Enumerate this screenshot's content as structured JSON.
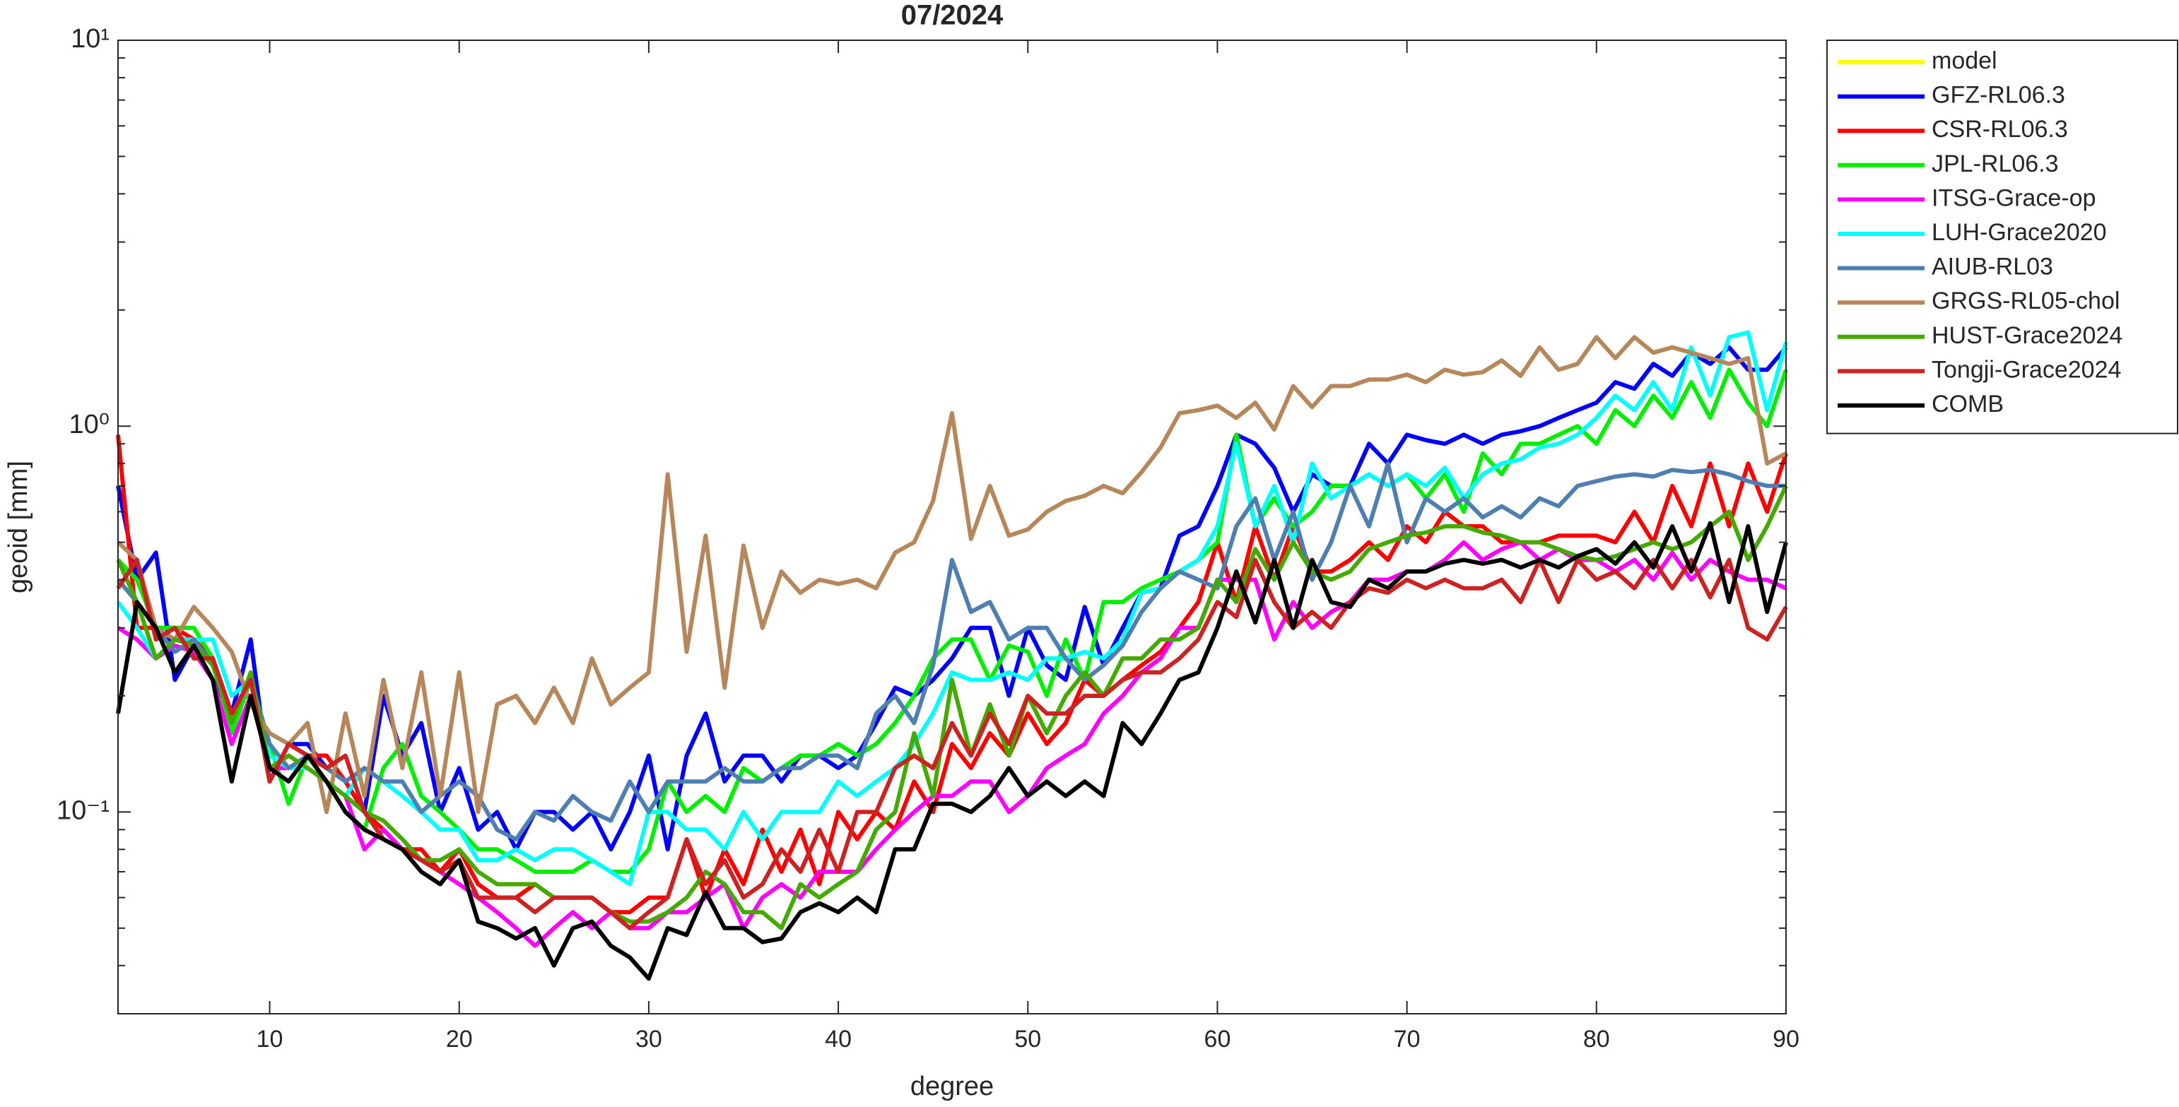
{
  "chart_data": {
    "type": "line",
    "title": "07/2024",
    "xlabel": "degree",
    "ylabel": "geoid [mm]",
    "log_y": true,
    "legend": "outside right top",
    "xlim": [
      2,
      90
    ],
    "ylim": [
      0.03,
      10
    ],
    "xticks": [
      10,
      20,
      30,
      40,
      50,
      60,
      70,
      80,
      90
    ],
    "yticks": [
      {
        "value": 0.1,
        "label": "10⁻¹"
      },
      {
        "value": 1,
        "label": "10⁰"
      },
      {
        "value": 10,
        "label": "10¹"
      }
    ],
    "yticks_minor": [
      0.04,
      0.05,
      0.06,
      0.07,
      0.08,
      0.09,
      0.2,
      0.3,
      0.4,
      0.5,
      0.6,
      0.7,
      0.8,
      0.9,
      2,
      3,
      4,
      5,
      6,
      7,
      8,
      9
    ],
    "x": [
      2,
      3,
      4,
      5,
      6,
      7,
      8,
      9,
      10,
      11,
      12,
      13,
      14,
      15,
      16,
      17,
      18,
      19,
      20,
      21,
      22,
      23,
      24,
      25,
      26,
      27,
      28,
      29,
      30,
      31,
      32,
      33,
      34,
      35,
      36,
      37,
      38,
      39,
      40,
      41,
      42,
      43,
      44,
      45,
      46,
      47,
      48,
      49,
      50,
      51,
      52,
      53,
      54,
      55,
      56,
      57,
      58,
      59,
      60,
      61,
      62,
      63,
      64,
      65,
      66,
      67,
      68,
      69,
      70,
      71,
      72,
      73,
      74,
      75,
      76,
      77,
      78,
      79,
      80,
      81,
      82,
      83,
      84,
      85,
      86,
      87,
      88,
      89,
      90
    ],
    "series": [
      {
        "name": "model",
        "color": "#ffff00",
        "values": [
          null,
          null,
          null,
          null,
          null,
          null,
          null,
          null,
          null,
          null,
          null,
          null,
          null,
          null,
          null,
          null,
          null,
          null,
          null,
          null,
          null,
          null,
          null,
          null,
          null,
          null,
          null,
          null,
          null,
          null,
          null,
          null,
          null,
          null,
          null,
          null,
          null,
          null,
          null,
          null,
          null,
          null,
          null,
          null,
          null,
          null,
          null,
          null,
          null,
          null,
          null,
          null,
          null,
          null,
          null,
          null,
          null,
          null,
          null,
          null,
          null,
          null,
          null,
          null,
          null,
          null,
          null,
          null,
          null,
          null,
          null,
          null,
          null,
          null,
          null,
          null,
          null,
          null,
          null,
          null,
          null,
          null,
          null,
          null,
          null,
          null,
          null,
          null,
          null
        ]
      },
      {
        "name": "GFZ-RL06.3",
        "color": "#0000ff",
        "values": [
          0.7,
          0.4,
          0.47,
          0.22,
          0.27,
          0.22,
          0.18,
          0.28,
          0.12,
          0.15,
          0.15,
          0.13,
          0.12,
          0.1,
          0.2,
          0.14,
          0.17,
          0.1,
          0.13,
          0.09,
          0.1,
          0.08,
          0.1,
          0.1,
          0.09,
          0.1,
          0.08,
          0.1,
          0.14,
          0.08,
          0.14,
          0.18,
          0.12,
          0.14,
          0.14,
          0.12,
          0.14,
          0.14,
          0.13,
          0.14,
          0.17,
          0.21,
          0.2,
          0.22,
          0.25,
          0.3,
          0.3,
          0.2,
          0.3,
          0.24,
          0.22,
          0.34,
          0.24,
          0.3,
          0.37,
          0.38,
          0.52,
          0.55,
          0.7,
          0.95,
          0.9,
          0.78,
          0.6,
          0.75,
          0.7,
          0.7,
          0.9,
          0.8,
          0.95,
          0.92,
          0.9,
          0.95,
          0.9,
          0.95,
          0.97,
          1.0,
          1.05,
          1.1,
          1.15,
          1.3,
          1.25,
          1.45,
          1.35,
          1.55,
          1.45,
          1.6,
          1.4,
          1.4,
          1.6
        ]
      },
      {
        "name": "CSR-RL06.3",
        "color": "#ff0000",
        "values": [
          0.95,
          0.3,
          0.3,
          0.3,
          0.28,
          0.25,
          0.17,
          0.22,
          0.12,
          0.15,
          0.14,
          0.14,
          0.12,
          0.1,
          0.09,
          0.08,
          0.08,
          0.07,
          0.08,
          0.065,
          0.06,
          0.06,
          0.065,
          0.06,
          0.06,
          0.06,
          0.055,
          0.055,
          0.06,
          0.06,
          0.085,
          0.06,
          0.08,
          0.065,
          0.09,
          0.07,
          0.09,
          0.065,
          0.1,
          0.085,
          0.1,
          0.09,
          0.12,
          0.1,
          0.15,
          0.13,
          0.16,
          0.14,
          0.18,
          0.15,
          0.17,
          0.22,
          0.2,
          0.22,
          0.24,
          0.26,
          0.3,
          0.35,
          0.5,
          0.35,
          0.55,
          0.4,
          0.55,
          0.42,
          0.42,
          0.45,
          0.5,
          0.45,
          0.55,
          0.5,
          0.6,
          0.55,
          0.55,
          0.5,
          0.5,
          0.5,
          0.52,
          0.52,
          0.52,
          0.5,
          0.6,
          0.5,
          0.7,
          0.55,
          0.8,
          0.55,
          0.8,
          0.6,
          0.85
        ]
      },
      {
        "name": "JPL-RL06.3",
        "color": "#00ee00",
        "values": [
          0.45,
          0.4,
          0.3,
          0.3,
          0.3,
          0.25,
          0.16,
          0.22,
          0.15,
          0.105,
          0.14,
          0.12,
          0.1,
          0.09,
          0.13,
          0.15,
          0.11,
          0.1,
          0.09,
          0.08,
          0.08,
          0.075,
          0.07,
          0.07,
          0.07,
          0.075,
          0.07,
          0.07,
          0.08,
          0.12,
          0.1,
          0.11,
          0.1,
          0.13,
          0.12,
          0.13,
          0.14,
          0.14,
          0.15,
          0.14,
          0.15,
          0.17,
          0.2,
          0.25,
          0.28,
          0.28,
          0.22,
          0.27,
          0.26,
          0.2,
          0.28,
          0.22,
          0.35,
          0.35,
          0.38,
          0.4,
          0.42,
          0.45,
          0.5,
          0.95,
          0.55,
          0.65,
          0.55,
          0.6,
          0.7,
          0.7,
          0.75,
          0.7,
          0.75,
          0.65,
          0.75,
          0.6,
          0.85,
          0.75,
          0.9,
          0.9,
          0.95,
          1.0,
          0.9,
          1.1,
          1.0,
          1.2,
          1.05,
          1.3,
          1.05,
          1.4,
          1.15,
          1.0,
          1.4
        ]
      },
      {
        "name": "ITSG-Grace-op",
        "color": "#ff00ff",
        "values": [
          0.3,
          0.28,
          0.25,
          0.27,
          0.26,
          0.22,
          0.15,
          0.2,
          0.13,
          0.13,
          0.13,
          0.12,
          0.11,
          0.08,
          0.09,
          0.08,
          0.075,
          0.07,
          0.065,
          0.06,
          0.055,
          0.05,
          0.045,
          0.05,
          0.055,
          0.05,
          0.055,
          0.05,
          0.05,
          0.055,
          0.055,
          0.06,
          0.065,
          0.05,
          0.06,
          0.065,
          0.06,
          0.07,
          0.07,
          0.07,
          0.08,
          0.09,
          0.1,
          0.11,
          0.11,
          0.12,
          0.12,
          0.1,
          0.11,
          0.13,
          0.14,
          0.15,
          0.18,
          0.2,
          0.23,
          0.25,
          0.3,
          0.3,
          0.4,
          0.4,
          0.4,
          0.28,
          0.35,
          0.3,
          0.33,
          0.35,
          0.4,
          0.4,
          0.42,
          0.42,
          0.45,
          0.5,
          0.45,
          0.48,
          0.5,
          0.45,
          0.48,
          0.45,
          0.45,
          0.42,
          0.45,
          0.4,
          0.47,
          0.4,
          0.45,
          0.42,
          0.4,
          0.4,
          0.38
        ]
      },
      {
        "name": "LUH-Grace2020",
        "color": "#00ffff",
        "values": [
          0.35,
          0.3,
          0.25,
          0.28,
          0.28,
          0.28,
          0.2,
          0.22,
          0.14,
          0.13,
          0.13,
          0.12,
          0.11,
          0.13,
          0.12,
          0.11,
          0.1,
          0.09,
          0.09,
          0.075,
          0.075,
          0.08,
          0.075,
          0.08,
          0.08,
          0.075,
          0.07,
          0.065,
          0.1,
          0.1,
          0.09,
          0.09,
          0.08,
          0.1,
          0.085,
          0.1,
          0.1,
          0.1,
          0.12,
          0.11,
          0.12,
          0.13,
          0.15,
          0.18,
          0.23,
          0.22,
          0.22,
          0.23,
          0.22,
          0.25,
          0.25,
          0.26,
          0.25,
          0.28,
          0.37,
          0.38,
          0.42,
          0.45,
          0.55,
          0.9,
          0.55,
          0.7,
          0.5,
          0.8,
          0.65,
          0.7,
          0.75,
          0.7,
          0.75,
          0.7,
          0.78,
          0.65,
          0.75,
          0.8,
          0.82,
          0.88,
          0.9,
          0.95,
          1.05,
          1.2,
          1.1,
          1.3,
          1.1,
          1.6,
          1.2,
          1.7,
          1.75,
          1.1,
          1.65
        ]
      },
      {
        "name": "AIUB-RL03",
        "color": "#4f7fb0",
        "values": [
          0.4,
          0.35,
          0.3,
          0.26,
          0.28,
          0.24,
          0.18,
          0.22,
          0.15,
          0.13,
          0.14,
          0.13,
          0.12,
          0.13,
          0.12,
          0.12,
          0.1,
          0.11,
          0.12,
          0.11,
          0.09,
          0.085,
          0.1,
          0.095,
          0.11,
          0.1,
          0.095,
          0.12,
          0.1,
          0.12,
          0.12,
          0.12,
          0.13,
          0.12,
          0.12,
          0.13,
          0.13,
          0.14,
          0.14,
          0.13,
          0.18,
          0.2,
          0.17,
          0.24,
          0.45,
          0.33,
          0.35,
          0.28,
          0.3,
          0.3,
          0.25,
          0.22,
          0.24,
          0.27,
          0.33,
          0.38,
          0.42,
          0.4,
          0.38,
          0.55,
          0.65,
          0.45,
          0.6,
          0.4,
          0.5,
          0.7,
          0.55,
          0.8,
          0.5,
          0.65,
          0.6,
          0.65,
          0.58,
          0.62,
          0.58,
          0.65,
          0.62,
          0.7,
          0.72,
          0.74,
          0.75,
          0.74,
          0.77,
          0.76,
          0.77,
          0.75,
          0.72,
          0.7,
          0.7
        ]
      },
      {
        "name": "GRGS-RL05-chol",
        "color": "#b5875a",
        "values": [
          0.5,
          0.45,
          0.3,
          0.28,
          0.34,
          0.3,
          0.26,
          0.19,
          0.16,
          0.15,
          0.17,
          0.1,
          0.18,
          0.11,
          0.22,
          0.13,
          0.23,
          0.11,
          0.23,
          0.1,
          0.19,
          0.2,
          0.17,
          0.21,
          0.17,
          0.25,
          0.19,
          0.21,
          0.23,
          0.75,
          0.26,
          0.52,
          0.21,
          0.49,
          0.3,
          0.42,
          0.37,
          0.4,
          0.39,
          0.4,
          0.38,
          0.47,
          0.5,
          0.64,
          1.08,
          0.51,
          0.7,
          0.52,
          0.54,
          0.6,
          0.64,
          0.66,
          0.7,
          0.67,
          0.76,
          0.88,
          1.08,
          1.1,
          1.13,
          1.05,
          1.15,
          0.98,
          1.27,
          1.12,
          1.27,
          1.27,
          1.32,
          1.32,
          1.36,
          1.3,
          1.4,
          1.36,
          1.38,
          1.48,
          1.35,
          1.6,
          1.4,
          1.45,
          1.7,
          1.5,
          1.7,
          1.55,
          1.6,
          1.55,
          1.5,
          1.45,
          1.5,
          0.8,
          0.85
        ]
      },
      {
        "name": "HUST-Grace2024",
        "color": "#44aa00",
        "values": [
          0.45,
          0.35,
          0.25,
          0.28,
          0.27,
          0.24,
          0.17,
          0.23,
          0.13,
          0.14,
          0.13,
          0.12,
          0.11,
          0.1,
          0.095,
          0.085,
          0.075,
          0.075,
          0.08,
          0.07,
          0.065,
          0.065,
          0.065,
          0.06,
          0.06,
          0.06,
          0.055,
          0.052,
          0.052,
          0.055,
          0.06,
          0.07,
          0.065,
          0.055,
          0.055,
          0.05,
          0.065,
          0.06,
          0.065,
          0.07,
          0.09,
          0.1,
          0.16,
          0.11,
          0.22,
          0.14,
          0.19,
          0.14,
          0.2,
          0.16,
          0.2,
          0.23,
          0.2,
          0.25,
          0.25,
          0.28,
          0.28,
          0.3,
          0.4,
          0.35,
          0.48,
          0.4,
          0.5,
          0.42,
          0.4,
          0.42,
          0.48,
          0.5,
          0.52,
          0.53,
          0.55,
          0.55,
          0.53,
          0.52,
          0.5,
          0.5,
          0.48,
          0.46,
          0.45,
          0.46,
          0.48,
          0.5,
          0.48,
          0.5,
          0.55,
          0.6,
          0.45,
          0.55,
          0.7
        ]
      },
      {
        "name": "Tongji-Grace2024",
        "color": "#cc2222",
        "values": [
          0.38,
          0.45,
          0.28,
          0.3,
          0.25,
          0.25,
          0.18,
          0.22,
          0.12,
          0.15,
          0.14,
          0.13,
          0.14,
          0.1,
          0.085,
          0.08,
          0.075,
          0.07,
          0.075,
          0.06,
          0.06,
          0.06,
          0.055,
          0.06,
          0.06,
          0.06,
          0.055,
          0.05,
          0.055,
          0.06,
          0.085,
          0.065,
          0.075,
          0.06,
          0.065,
          0.08,
          0.07,
          0.09,
          0.07,
          0.1,
          0.1,
          0.13,
          0.14,
          0.13,
          0.17,
          0.14,
          0.18,
          0.15,
          0.2,
          0.18,
          0.18,
          0.2,
          0.2,
          0.22,
          0.23,
          0.23,
          0.25,
          0.28,
          0.35,
          0.32,
          0.45,
          0.35,
          0.3,
          0.33,
          0.3,
          0.35,
          0.38,
          0.37,
          0.4,
          0.38,
          0.4,
          0.38,
          0.38,
          0.4,
          0.35,
          0.45,
          0.35,
          0.45,
          0.4,
          0.42,
          0.38,
          0.45,
          0.38,
          0.45,
          0.36,
          0.45,
          0.3,
          0.28,
          0.34
        ]
      },
      {
        "name": "COMB",
        "color": "#000000",
        "values": [
          0.18,
          0.35,
          0.3,
          0.23,
          0.27,
          0.22,
          0.12,
          0.2,
          0.13,
          0.12,
          0.14,
          0.12,
          0.1,
          0.09,
          0.085,
          0.08,
          0.07,
          0.065,
          0.075,
          0.052,
          0.05,
          0.047,
          0.05,
          0.04,
          0.05,
          0.052,
          0.045,
          0.042,
          0.037,
          0.05,
          0.048,
          0.062,
          0.05,
          0.05,
          0.046,
          0.047,
          0.055,
          0.058,
          0.055,
          0.06,
          0.055,
          0.08,
          0.08,
          0.105,
          0.105,
          0.1,
          0.11,
          0.13,
          0.11,
          0.12,
          0.11,
          0.12,
          0.11,
          0.17,
          0.15,
          0.18,
          0.22,
          0.23,
          0.3,
          0.42,
          0.31,
          0.45,
          0.3,
          0.45,
          0.35,
          0.34,
          0.4,
          0.38,
          0.42,
          0.42,
          0.44,
          0.45,
          0.44,
          0.45,
          0.43,
          0.45,
          0.43,
          0.46,
          0.48,
          0.44,
          0.5,
          0.43,
          0.55,
          0.42,
          0.56,
          0.35,
          0.55,
          0.33,
          0.5
        ]
      }
    ]
  }
}
